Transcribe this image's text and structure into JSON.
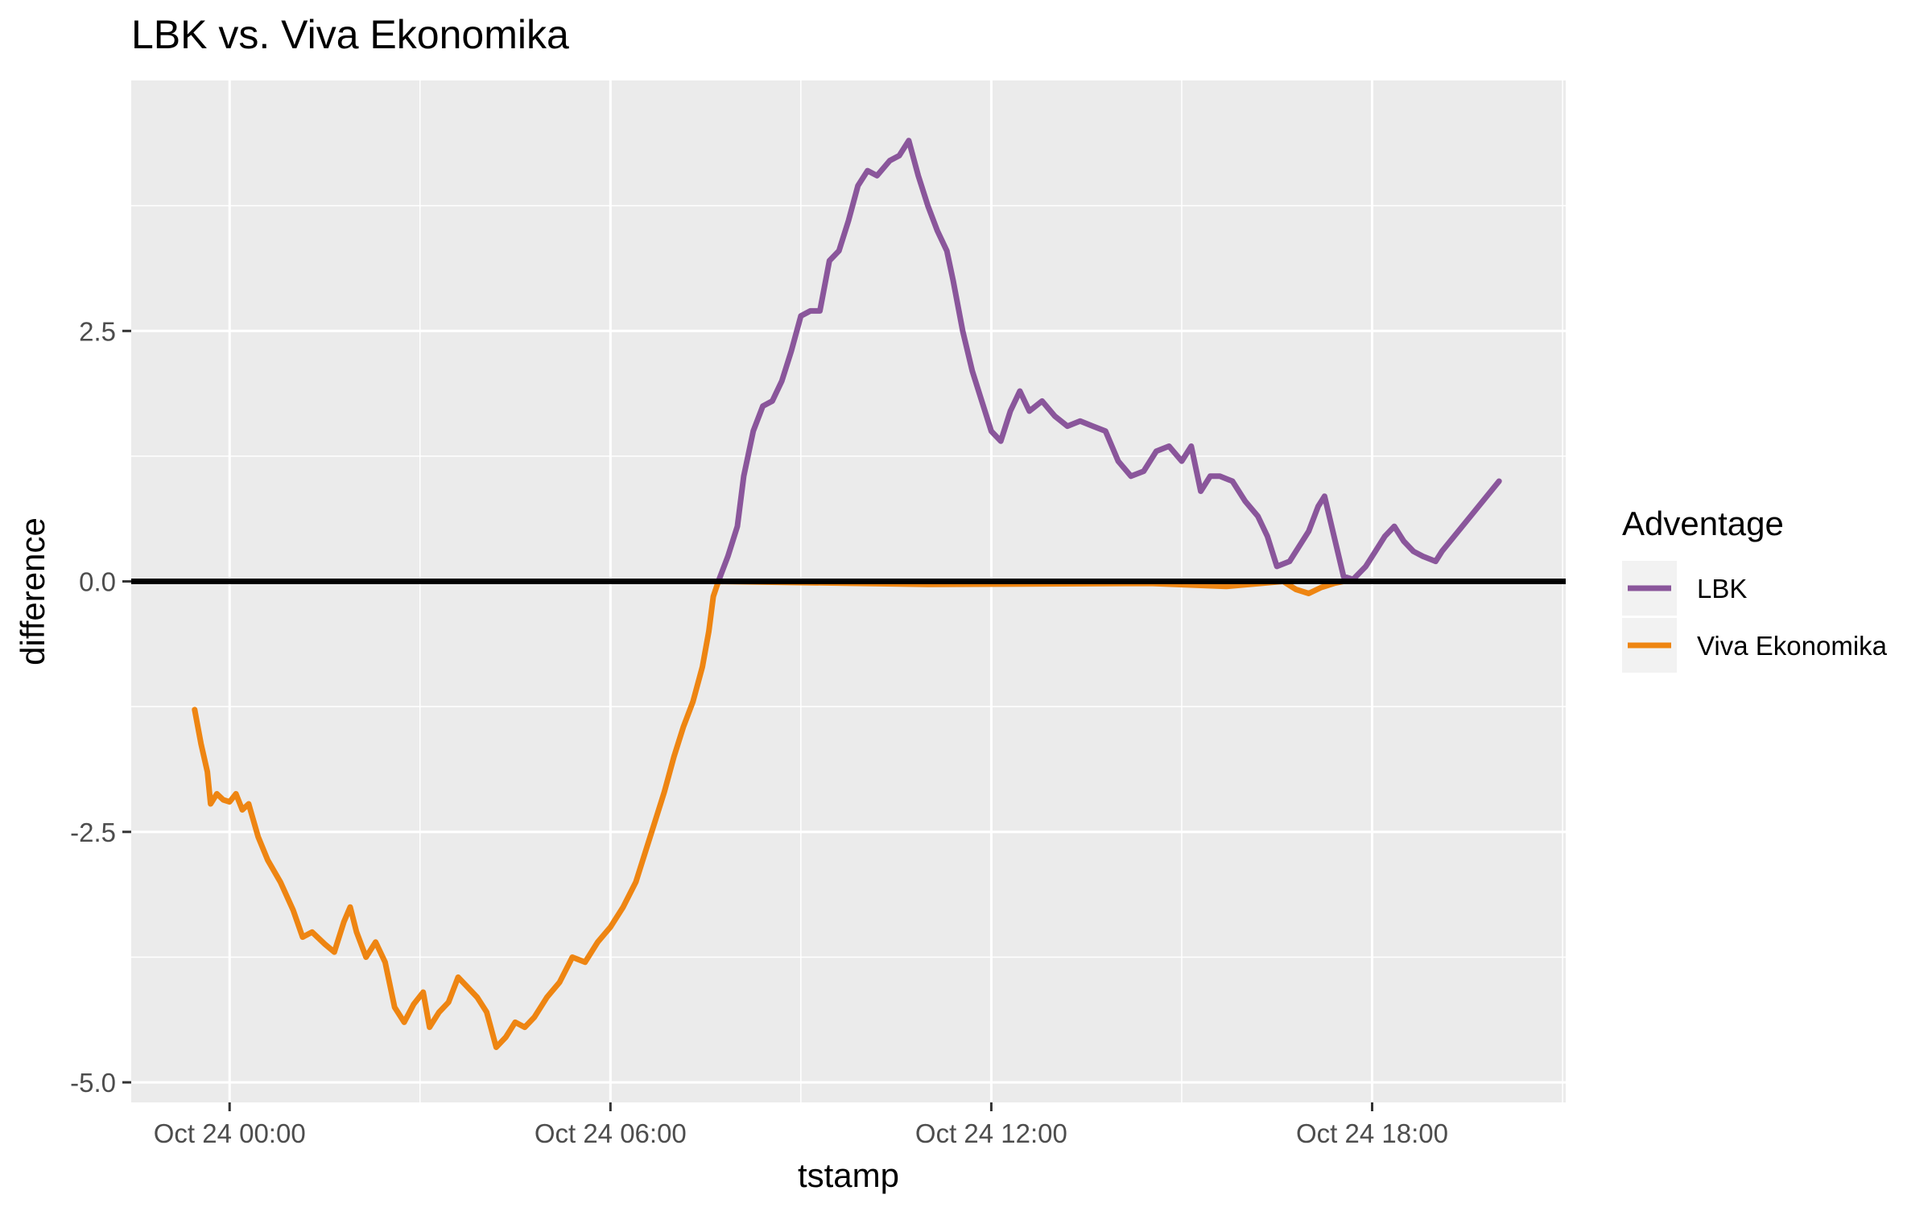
{
  "chart_data": {
    "type": "line",
    "title": "LBK vs. Viva Ekonomika",
    "xlabel": "tstamp",
    "ylabel": "difference",
    "x_ticks": [
      "Oct 24 00:00",
      "Oct 24 06:00",
      "Oct 24 12:00",
      "Oct 24 18:00"
    ],
    "y_ticks": [
      "2.5",
      "0.0",
      "-2.5",
      "-5.0"
    ],
    "y_tick_values": [
      2.5,
      0.0,
      -2.5,
      -5.0
    ],
    "x_range_hours": [
      -1.55,
      21.05
    ],
    "ylim": [
      -5.2,
      5.0
    ],
    "grid": true,
    "background": "#ebebeb",
    "reference_line": {
      "y": 0,
      "color": "#000000"
    },
    "legend": {
      "title": "Adventage",
      "placement": "right",
      "entries": [
        {
          "label": "LBK",
          "color": "#8a569b"
        },
        {
          "label": "Viva Ekonomika",
          "color": "#ee8512"
        }
      ]
    },
    "x_unit": "hours after Oct 24 00:00",
    "series": [
      {
        "name": "Viva Ekonomika",
        "color": "#ee8512",
        "points": [
          [
            -0.55,
            -1.28
          ],
          [
            -0.45,
            -1.62
          ],
          [
            -0.35,
            -1.9
          ],
          [
            -0.3,
            -2.22
          ],
          [
            -0.2,
            -2.12
          ],
          [
            -0.1,
            -2.18
          ],
          [
            0.0,
            -2.2
          ],
          [
            0.1,
            -2.12
          ],
          [
            0.2,
            -2.28
          ],
          [
            0.3,
            -2.22
          ],
          [
            0.45,
            -2.55
          ],
          [
            0.6,
            -2.78
          ],
          [
            0.8,
            -3.0
          ],
          [
            1.0,
            -3.28
          ],
          [
            1.15,
            -3.55
          ],
          [
            1.3,
            -3.5
          ],
          [
            1.5,
            -3.62
          ],
          [
            1.65,
            -3.7
          ],
          [
            1.8,
            -3.4
          ],
          [
            1.9,
            -3.25
          ],
          [
            2.0,
            -3.5
          ],
          [
            2.15,
            -3.75
          ],
          [
            2.3,
            -3.6
          ],
          [
            2.45,
            -3.8
          ],
          [
            2.6,
            -4.25
          ],
          [
            2.75,
            -4.4
          ],
          [
            2.9,
            -4.22
          ],
          [
            3.05,
            -4.1
          ],
          [
            3.15,
            -4.45
          ],
          [
            3.3,
            -4.3
          ],
          [
            3.45,
            -4.2
          ],
          [
            3.6,
            -3.95
          ],
          [
            3.75,
            -4.05
          ],
          [
            3.9,
            -4.15
          ],
          [
            4.05,
            -4.3
          ],
          [
            4.2,
            -4.65
          ],
          [
            4.35,
            -4.55
          ],
          [
            4.5,
            -4.4
          ],
          [
            4.65,
            -4.45
          ],
          [
            4.8,
            -4.35
          ],
          [
            5.0,
            -4.15
          ],
          [
            5.2,
            -4.0
          ],
          [
            5.4,
            -3.75
          ],
          [
            5.6,
            -3.8
          ],
          [
            5.8,
            -3.6
          ],
          [
            6.0,
            -3.45
          ],
          [
            6.2,
            -3.25
          ],
          [
            6.4,
            -3.0
          ],
          [
            6.55,
            -2.7
          ],
          [
            6.7,
            -2.4
          ],
          [
            6.85,
            -2.1
          ],
          [
            7.0,
            -1.75
          ],
          [
            7.15,
            -1.45
          ],
          [
            7.3,
            -1.2
          ],
          [
            7.45,
            -0.85
          ],
          [
            7.55,
            -0.5
          ],
          [
            7.62,
            -0.15
          ],
          [
            7.7,
            0.0
          ],
          [
            11.0,
            -0.03
          ],
          [
            14.5,
            -0.02
          ],
          [
            15.7,
            -0.05
          ],
          [
            16.6,
            0.0
          ],
          [
            16.8,
            -0.08
          ],
          [
            17.0,
            -0.12
          ],
          [
            17.2,
            -0.06
          ],
          [
            17.4,
            -0.02
          ],
          [
            17.55,
            0.0
          ]
        ]
      },
      {
        "name": "LBK",
        "color": "#8a569b",
        "points": [
          [
            7.7,
            0.0
          ],
          [
            7.85,
            0.25
          ],
          [
            8.0,
            0.55
          ],
          [
            8.1,
            1.05
          ],
          [
            8.25,
            1.5
          ],
          [
            8.4,
            1.75
          ],
          [
            8.55,
            1.8
          ],
          [
            8.7,
            2.0
          ],
          [
            8.85,
            2.3
          ],
          [
            9.0,
            2.65
          ],
          [
            9.15,
            2.7
          ],
          [
            9.3,
            2.7
          ],
          [
            9.45,
            3.2
          ],
          [
            9.6,
            3.3
          ],
          [
            9.75,
            3.6
          ],
          [
            9.9,
            3.95
          ],
          [
            10.05,
            4.1
          ],
          [
            10.2,
            4.05
          ],
          [
            10.4,
            4.2
          ],
          [
            10.55,
            4.25
          ],
          [
            10.7,
            4.4
          ],
          [
            10.85,
            4.05
          ],
          [
            11.0,
            3.75
          ],
          [
            11.15,
            3.5
          ],
          [
            11.3,
            3.3
          ],
          [
            11.4,
            3.0
          ],
          [
            11.55,
            2.5
          ],
          [
            11.7,
            2.1
          ],
          [
            11.85,
            1.8
          ],
          [
            12.0,
            1.5
          ],
          [
            12.15,
            1.4
          ],
          [
            12.3,
            1.7
          ],
          [
            12.45,
            1.9
          ],
          [
            12.6,
            1.7
          ],
          [
            12.8,
            1.8
          ],
          [
            13.0,
            1.65
          ],
          [
            13.2,
            1.55
          ],
          [
            13.4,
            1.6
          ],
          [
            13.6,
            1.55
          ],
          [
            13.8,
            1.5
          ],
          [
            14.0,
            1.2
          ],
          [
            14.2,
            1.05
          ],
          [
            14.4,
            1.1
          ],
          [
            14.6,
            1.3
          ],
          [
            14.8,
            1.35
          ],
          [
            15.0,
            1.2
          ],
          [
            15.15,
            1.35
          ],
          [
            15.3,
            0.9
          ],
          [
            15.45,
            1.05
          ],
          [
            15.6,
            1.05
          ],
          [
            15.8,
            1.0
          ],
          [
            16.0,
            0.8
          ],
          [
            16.2,
            0.65
          ],
          [
            16.35,
            0.45
          ],
          [
            16.5,
            0.15
          ],
          [
            16.7,
            0.2
          ],
          [
            16.85,
            0.35
          ],
          [
            17.0,
            0.5
          ],
          [
            17.15,
            0.75
          ],
          [
            17.25,
            0.85
          ],
          [
            17.4,
            0.45
          ],
          [
            17.55,
            0.05
          ],
          [
            17.7,
            0.02
          ],
          [
            17.9,
            0.15
          ],
          [
            18.05,
            0.3
          ],
          [
            18.2,
            0.45
          ],
          [
            18.35,
            0.55
          ],
          [
            18.5,
            0.4
          ],
          [
            18.65,
            0.3
          ],
          [
            18.8,
            0.25
          ],
          [
            19.0,
            0.2
          ],
          [
            19.1,
            0.3
          ],
          [
            20.0,
            1.0
          ]
        ]
      }
    ]
  }
}
